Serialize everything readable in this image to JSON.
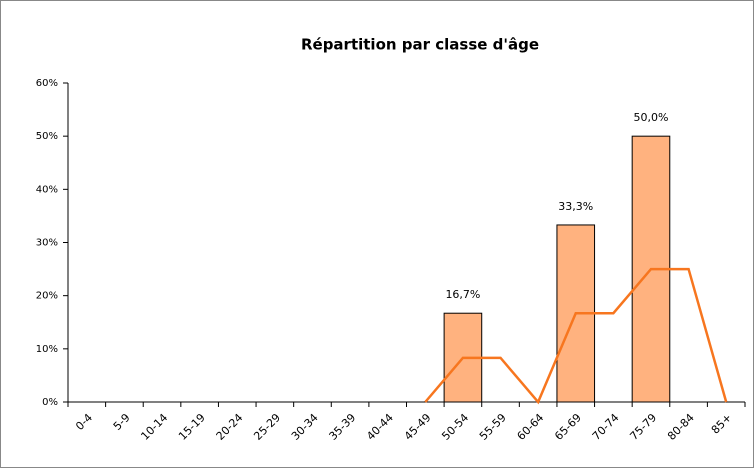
{
  "chart_data": {
    "type": "bar",
    "title": "Répartition par classe d'âge",
    "categories": [
      "0-4",
      "5-9",
      "10-14",
      "15-19",
      "20-24",
      "25-29",
      "30-34",
      "35-39",
      "40-44",
      "45-49",
      "50-54",
      "55-59",
      "60-64",
      "65-69",
      "70-74",
      "75-79",
      "80-84",
      "85+"
    ],
    "series": [
      {
        "type": "bar",
        "color": "#ffb27f",
        "values": [
          0,
          0,
          0,
          0,
          0,
          0,
          0,
          0,
          0,
          0,
          16.7,
          0,
          0,
          33.3,
          0,
          50,
          0,
          0
        ],
        "value_labels": [
          null,
          null,
          null,
          null,
          null,
          null,
          null,
          null,
          null,
          null,
          "16,7%",
          null,
          null,
          "33,3%",
          null,
          "50,0%",
          null,
          null
        ]
      },
      {
        "type": "line",
        "color": "#f7761f",
        "values": [
          null,
          null,
          null,
          null,
          null,
          null,
          null,
          null,
          null,
          0,
          8.3,
          8.3,
          0,
          16.7,
          16.7,
          25,
          25,
          0
        ]
      }
    ],
    "ylim": [
      0,
      60
    ],
    "yticks": [
      {
        "value": 0,
        "label": "0%"
      },
      {
        "value": 10,
        "label": "10%"
      },
      {
        "value": 20,
        "label": "20%"
      },
      {
        "value": 30,
        "label": "30%"
      },
      {
        "value": 40,
        "label": "40%"
      },
      {
        "value": 50,
        "label": "50%"
      },
      {
        "value": 60,
        "label": "60%"
      }
    ]
  }
}
